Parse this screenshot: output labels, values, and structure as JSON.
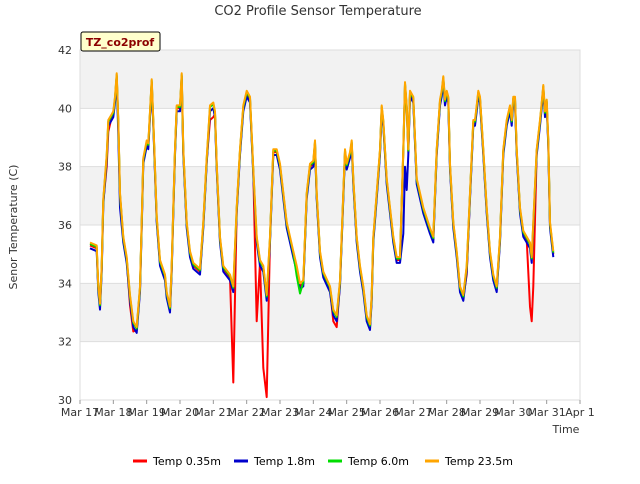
{
  "chart_data": {
    "type": "line",
    "title": "CO2 Profile Sensor Temperature",
    "xlabel": "Time",
    "ylabel": "Senor Temperature (C)",
    "ylim": [
      30,
      42
    ],
    "xlim": [
      17,
      32
    ],
    "yticks": [
      30,
      32,
      34,
      36,
      38,
      40,
      42
    ],
    "xticks": [
      {
        "pos": 17,
        "label": "Mar 17"
      },
      {
        "pos": 18,
        "label": "Mar 18"
      },
      {
        "pos": 19,
        "label": "Mar 19"
      },
      {
        "pos": 20,
        "label": "Mar 20"
      },
      {
        "pos": 21,
        "label": "Mar 21"
      },
      {
        "pos": 22,
        "label": "Mar 22"
      },
      {
        "pos": 23,
        "label": "Mar 23"
      },
      {
        "pos": 24,
        "label": "Mar 24"
      },
      {
        "pos": 25,
        "label": "Mar 25"
      },
      {
        "pos": 26,
        "label": "Mar 26"
      },
      {
        "pos": 27,
        "label": "Mar 27"
      },
      {
        "pos": 28,
        "label": "Mar 28"
      },
      {
        "pos": 29,
        "label": "Mar 29"
      },
      {
        "pos": 30,
        "label": "Mar 30"
      },
      {
        "pos": 31,
        "label": "Mar 31"
      },
      {
        "pos": 32,
        "label": "Apr 1"
      }
    ],
    "annotation": "TZ_co2prof",
    "grid": true,
    "series": [
      {
        "name": "Temp 0.35m",
        "color": "#ff0000",
        "offset": 0.0,
        "dev": [
          [
            17.8,
            -0.3
          ],
          [
            18.55,
            -0.25
          ],
          [
            20.95,
            -0.4
          ],
          [
            21.6,
            -3.2
          ],
          [
            22.3,
            -2.8
          ],
          [
            22.55,
            -3.4
          ],
          [
            24.65,
            -0.3
          ],
          [
            28.6,
            -0.2
          ],
          [
            30.55,
            -2.1
          ]
        ]
      },
      {
        "name": "Temp 1.8m",
        "color": "#0000cc",
        "offset": -0.1,
        "dev": [
          [
            26.75,
            -2.7
          ],
          [
            18.2,
            -0.3
          ]
        ]
      },
      {
        "name": "Temp 6.0m",
        "color": "#00dd00",
        "offset": 0.05,
        "dev": [
          [
            23.55,
            -0.3
          ]
        ]
      },
      {
        "name": "Temp 23.5m",
        "color": "#ffa500",
        "offset": 0.1,
        "dev": []
      }
    ],
    "base_x": [
      17.3,
      17.5,
      17.55,
      17.6,
      17.65,
      17.7,
      17.8,
      17.85,
      17.95,
      18.0,
      18.05,
      18.1,
      18.15,
      18.2,
      18.3,
      18.4,
      18.5,
      18.6,
      18.7,
      18.8,
      18.85,
      18.9,
      19.0,
      19.05,
      19.1,
      19.15,
      19.2,
      19.3,
      19.4,
      19.55,
      19.6,
      19.7,
      19.75,
      19.8,
      19.85,
      19.9,
      20.0,
      20.05,
      20.1,
      20.2,
      20.3,
      20.4,
      20.6,
      20.7,
      20.8,
      20.9,
      21.0,
      21.05,
      21.1,
      21.2,
      21.3,
      21.5,
      21.6,
      21.7,
      21.8,
      21.9,
      22.0,
      22.1,
      22.2,
      22.3,
      22.4,
      22.5,
      22.6,
      22.7,
      22.8,
      22.9,
      23.0,
      23.2,
      23.4,
      23.5,
      23.6,
      23.7,
      23.8,
      23.9,
      24.0,
      24.05,
      24.1,
      24.2,
      24.3,
      24.5,
      24.6,
      24.7,
      24.8,
      24.9,
      24.95,
      25.0,
      25.1,
      25.15,
      25.2,
      25.3,
      25.4,
      25.5,
      25.6,
      25.7,
      25.75,
      25.8,
      25.9,
      26.0,
      26.05,
      26.1,
      26.15,
      26.2,
      26.3,
      26.4,
      26.5,
      26.6,
      26.7,
      26.75,
      26.8,
      26.85,
      26.9,
      27.0,
      27.1,
      27.3,
      27.5,
      27.6,
      27.7,
      27.8,
      27.85,
      27.9,
      27.95,
      28.0,
      28.05,
      28.1,
      28.2,
      28.3,
      28.4,
      28.5,
      28.6,
      28.7,
      28.8,
      28.85,
      28.9,
      28.95,
      29.0,
      29.1,
      29.2,
      29.3,
      29.4,
      29.5,
      29.6,
      29.7,
      29.8,
      29.9,
      29.95,
      30.0,
      30.05,
      30.1,
      30.2,
      30.3,
      30.4,
      30.5,
      30.55,
      30.6,
      30.7,
      30.8,
      30.85,
      30.9,
      30.95,
      31.0,
      31.05,
      31.1,
      31.2,
      31.3,
      31.4
    ],
    "base_y": [
      35.3,
      35.2,
      33.8,
      33.2,
      34.5,
      36.8,
      38.3,
      39.5,
      39.7,
      39.8,
      40.3,
      41.1,
      39.5,
      37.0,
      35.5,
      34.8,
      33.5,
      32.6,
      32.4,
      33.8,
      36.0,
      38.2,
      38.8,
      38.7,
      39.8,
      40.9,
      39.5,
      36.2,
      34.7,
      34.2,
      33.6,
      33.1,
      34.5,
      36.5,
      38.5,
      40.0,
      40.0,
      41.1,
      38.5,
      36.0,
      35.0,
      34.6,
      34.4,
      36.0,
      38.2,
      40.0,
      40.1,
      39.8,
      38.0,
      35.5,
      34.5,
      34.2,
      33.8,
      36.5,
      38.5,
      40.0,
      40.5,
      40.3,
      37.8,
      35.5,
      34.7,
      34.5,
      33.5,
      35.5,
      38.5,
      38.5,
      38.0,
      36.0,
      35.0,
      34.5,
      33.9,
      34.0,
      37.0,
      38.0,
      38.1,
      38.8,
      37.0,
      35.0,
      34.3,
      33.8,
      33.0,
      32.8,
      34.0,
      37.0,
      38.5,
      38.0,
      38.4,
      38.8,
      37.5,
      35.5,
      34.5,
      33.8,
      32.8,
      32.5,
      33.5,
      35.5,
      37.0,
      38.5,
      40.0,
      39.5,
      38.5,
      37.5,
      36.5,
      35.5,
      34.8,
      34.8,
      38.5,
      40.8,
      40.0,
      38.5,
      40.5,
      40.3,
      37.5,
      36.5,
      35.8,
      35.5,
      38.5,
      40.2,
      40.5,
      41.0,
      40.2,
      40.5,
      40.3,
      38.0,
      36.0,
      35.0,
      33.8,
      33.5,
      34.5,
      37.0,
      39.5,
      39.5,
      40.0,
      40.5,
      40.3,
      38.5,
      36.5,
      35.0,
      34.2,
      33.8,
      35.5,
      38.5,
      39.5,
      40.0,
      39.5,
      40.3,
      40.3,
      38.5,
      36.5,
      35.7,
      35.5,
      35.3,
      34.8,
      36.0,
      38.5,
      39.5,
      40.1,
      40.7,
      39.8,
      40.2,
      38.8,
      36.0,
      35.0
    ]
  },
  "legend_position": "bottom"
}
